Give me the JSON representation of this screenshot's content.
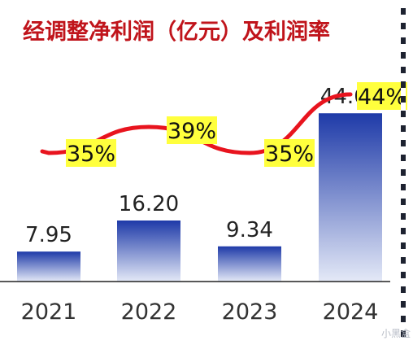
{
  "chart_data": {
    "type": "bar",
    "title": "经调整净利润（亿元）及利润率",
    "categories": [
      "2021",
      "2022",
      "2023",
      "2024"
    ],
    "series": [
      {
        "name": "",
        "values": [
          7.95,
          16.2,
          9.34,
          44.66
        ],
        "value_labels": [
          "7.95",
          "16.20",
          "9.34",
          "44.66"
        ]
      },
      {
        "name": "",
        "type": "line",
        "values": [
          35,
          39,
          35,
          44
        ],
        "value_labels": [
          "35%",
          "39%",
          "35%",
          "44%"
        ]
      }
    ],
    "grid": false,
    "legend": "none",
    "colors": {
      "title": "#c0141b",
      "bar_top": "#1e3aa8",
      "bar_bottom": "#e4e9f7",
      "line": "#e8141e",
      "rate_highlight": "#ffff3d",
      "axis": "#222222",
      "right_border": "#1d2230"
    }
  },
  "watermark": "小黑盒"
}
